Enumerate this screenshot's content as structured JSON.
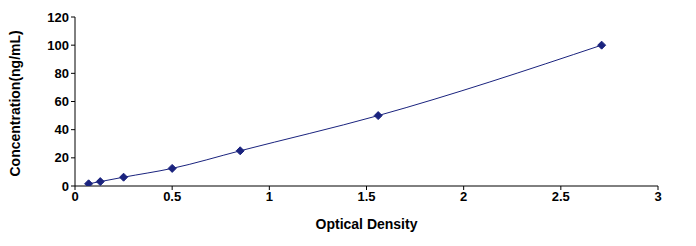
{
  "chart_data": {
    "type": "line",
    "x_label": "Optical Density",
    "y_label": "Concentration(ng/mL)",
    "x": [
      0.07,
      0.13,
      0.25,
      0.5,
      0.85,
      1.56,
      2.71
    ],
    "values": [
      1.56,
      3.12,
      6.25,
      12.5,
      25,
      50,
      100
    ],
    "color": "#1a237e",
    "marker": "diamond",
    "line_style": "solid",
    "xlim": [
      0,
      3
    ],
    "xticks": [
      0,
      0.5,
      1,
      1.5,
      2,
      2.5,
      3
    ],
    "ylim": [
      0,
      120
    ],
    "yticks": [
      0,
      20,
      40,
      60,
      80,
      100,
      120
    ],
    "grid": false
  }
}
